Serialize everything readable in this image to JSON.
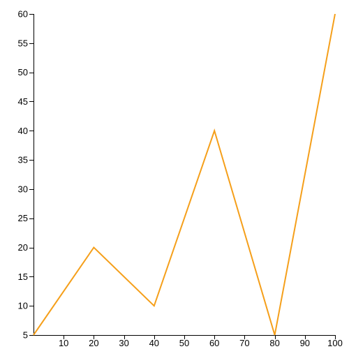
{
  "colors": {
    "series_line": "#f59f1a",
    "axis": "#000000",
    "text": "#000000",
    "background": "#ffffff"
  },
  "chart_data": {
    "type": "line",
    "title": "",
    "xlabel": "",
    "ylabel": "",
    "xlim": [
      0,
      100
    ],
    "ylim": [
      5,
      60
    ],
    "grid": false,
    "legend": "none",
    "x_ticks": [
      10,
      20,
      30,
      40,
      50,
      60,
      70,
      80,
      90,
      100
    ],
    "y_ticks": [
      5,
      10,
      15,
      20,
      25,
      30,
      35,
      40,
      45,
      50,
      55,
      60
    ],
    "series": [
      {
        "color": "#f59f1a",
        "x": [
          0,
          20,
          40,
          60,
          80,
          100
        ],
        "y": [
          5,
          20,
          10,
          40,
          5,
          60
        ]
      }
    ]
  }
}
